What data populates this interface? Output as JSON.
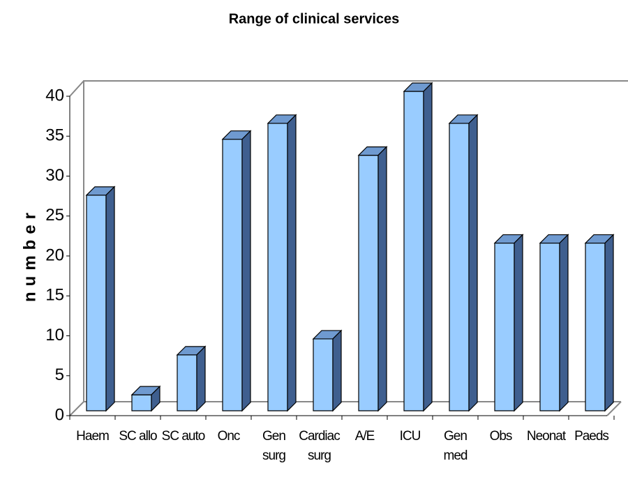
{
  "chart_data": {
    "type": "bar3d",
    "title": "Range of clinical services",
    "y_label": "number",
    "categories": [
      "Haem",
      "SC allo",
      "SC auto",
      "Onc",
      "Gen surg",
      "Cardiac surg",
      "A/E",
      "ICU",
      "Gen med",
      "Obs",
      "Neonat",
      "Paeds"
    ],
    "values": [
      27,
      2,
      7,
      34,
      36,
      9,
      32,
      40,
      36,
      21,
      21,
      21
    ],
    "color": "#99ccff",
    "ylim": [
      0,
      40
    ],
    "yticks": [
      0,
      5,
      10,
      15,
      20,
      25,
      30,
      35,
      40
    ],
    "grid": false
  }
}
